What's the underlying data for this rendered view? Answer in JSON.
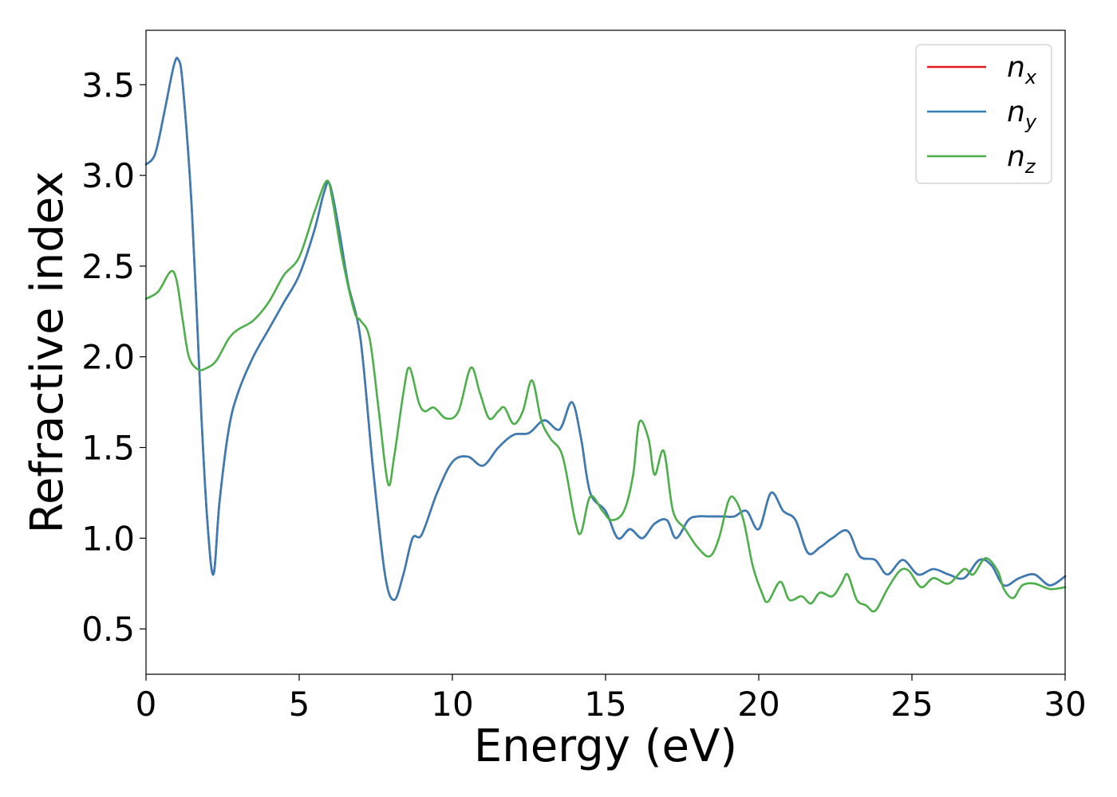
{
  "chart_data": {
    "type": "line",
    "title": "",
    "xlabel": "Energy (eV)",
    "ylabel": "Refractive index",
    "xlim": [
      0,
      30
    ],
    "ylim": [
      0.25,
      3.8
    ],
    "xticks": [
      0,
      5,
      10,
      15,
      20,
      25,
      30
    ],
    "yticks": [
      0.5,
      1.0,
      1.5,
      2.0,
      2.5,
      3.0,
      3.5
    ],
    "xtick_labels": [
      "0",
      "5",
      "10",
      "15",
      "20",
      "25",
      "30"
    ],
    "ytick_labels": [
      "0.5",
      "1.0",
      "1.5",
      "2.0",
      "2.5",
      "3.0",
      "3.5"
    ],
    "grid": false,
    "legend_position": "top-right",
    "series": [
      {
        "name": "n",
        "subscript": "x",
        "color": "#e41a1c",
        "x": [
          0,
          0.3,
          0.6,
          0.9,
          1.05,
          1.2,
          1.5,
          1.8,
          2.0,
          2.2,
          2.4,
          2.7,
          3.0,
          3.5,
          4.0,
          4.5,
          5.0,
          5.5,
          5.8,
          6.0,
          6.3,
          6.6,
          7.0,
          7.4,
          7.8,
          8.1,
          8.4,
          8.7,
          9.0,
          9.5,
          10.0,
          10.5,
          11.0,
          11.5,
          12.0,
          12.5,
          13.0,
          13.5,
          13.9,
          14.2,
          14.5,
          15.0,
          15.4,
          15.8,
          16.2,
          16.6,
          17.0,
          17.3,
          17.7,
          18.0,
          18.4,
          18.8,
          19.2,
          19.6,
          20.0,
          20.4,
          20.8,
          21.2,
          21.6,
          22.0,
          22.4,
          22.9,
          23.3,
          23.8,
          24.2,
          24.7,
          25.2,
          25.7,
          26.2,
          26.7,
          27.2,
          27.6,
          28.0,
          28.5,
          29.0,
          29.5,
          30.0
        ],
        "values": [
          3.06,
          3.12,
          3.35,
          3.6,
          3.64,
          3.5,
          2.8,
          1.7,
          1.1,
          0.8,
          1.2,
          1.6,
          1.8,
          2.0,
          2.15,
          2.3,
          2.45,
          2.7,
          2.9,
          2.95,
          2.7,
          2.4,
          2.1,
          1.4,
          0.8,
          0.66,
          0.8,
          1.0,
          1.02,
          1.25,
          1.42,
          1.45,
          1.4,
          1.5,
          1.57,
          1.58,
          1.65,
          1.6,
          1.75,
          1.55,
          1.25,
          1.15,
          1.0,
          1.05,
          1.0,
          1.08,
          1.1,
          1.0,
          1.1,
          1.12,
          1.12,
          1.12,
          1.12,
          1.15,
          1.05,
          1.25,
          1.15,
          1.1,
          0.92,
          0.95,
          1.0,
          1.04,
          0.9,
          0.88,
          0.8,
          0.88,
          0.8,
          0.83,
          0.8,
          0.78,
          0.88,
          0.85,
          0.74,
          0.78,
          0.8,
          0.74,
          0.79
        ]
      },
      {
        "name": "n",
        "subscript": "y",
        "color": "#377eb8",
        "x": [
          0,
          0.3,
          0.6,
          0.9,
          1.05,
          1.2,
          1.5,
          1.8,
          2.0,
          2.2,
          2.4,
          2.7,
          3.0,
          3.5,
          4.0,
          4.5,
          5.0,
          5.5,
          5.8,
          6.0,
          6.3,
          6.6,
          7.0,
          7.4,
          7.8,
          8.1,
          8.4,
          8.7,
          9.0,
          9.5,
          10.0,
          10.5,
          11.0,
          11.5,
          12.0,
          12.5,
          13.0,
          13.5,
          13.9,
          14.2,
          14.5,
          15.0,
          15.4,
          15.8,
          16.2,
          16.6,
          17.0,
          17.3,
          17.7,
          18.0,
          18.4,
          18.8,
          19.2,
          19.6,
          20.0,
          20.4,
          20.8,
          21.2,
          21.6,
          22.0,
          22.4,
          22.9,
          23.3,
          23.8,
          24.2,
          24.7,
          25.2,
          25.7,
          26.2,
          26.7,
          27.2,
          27.6,
          28.0,
          28.5,
          29.0,
          29.5,
          30.0
        ],
        "values": [
          3.06,
          3.12,
          3.35,
          3.6,
          3.64,
          3.5,
          2.8,
          1.7,
          1.1,
          0.8,
          1.2,
          1.6,
          1.8,
          2.0,
          2.15,
          2.3,
          2.45,
          2.7,
          2.9,
          2.95,
          2.7,
          2.4,
          2.1,
          1.4,
          0.8,
          0.66,
          0.8,
          1.0,
          1.02,
          1.25,
          1.42,
          1.45,
          1.4,
          1.5,
          1.57,
          1.58,
          1.65,
          1.6,
          1.75,
          1.55,
          1.25,
          1.15,
          1.0,
          1.05,
          1.0,
          1.08,
          1.1,
          1.0,
          1.1,
          1.12,
          1.12,
          1.12,
          1.12,
          1.15,
          1.05,
          1.25,
          1.15,
          1.1,
          0.92,
          0.95,
          1.0,
          1.04,
          0.9,
          0.88,
          0.8,
          0.88,
          0.8,
          0.83,
          0.8,
          0.78,
          0.88,
          0.85,
          0.74,
          0.78,
          0.8,
          0.74,
          0.79
        ]
      },
      {
        "name": "n",
        "subscript": "z",
        "color": "#4daf4a",
        "x": [
          0,
          0.4,
          0.8,
          1.0,
          1.2,
          1.4,
          1.7,
          2.0,
          2.3,
          2.7,
          3.0,
          3.5,
          4.0,
          4.5,
          5.0,
          5.5,
          5.9,
          6.1,
          6.4,
          6.8,
          7.0,
          7.3,
          7.6,
          7.9,
          8.1,
          8.4,
          8.6,
          8.9,
          9.1,
          9.4,
          9.8,
          10.2,
          10.6,
          10.9,
          11.2,
          11.5,
          11.7,
          12.0,
          12.3,
          12.6,
          12.9,
          13.2,
          13.6,
          14.0,
          14.2,
          14.5,
          14.9,
          15.2,
          15.6,
          15.9,
          16.1,
          16.4,
          16.6,
          16.9,
          17.2,
          17.6,
          18.0,
          18.4,
          18.7,
          19.0,
          19.2,
          19.5,
          19.8,
          20.1,
          20.3,
          20.7,
          21.0,
          21.4,
          21.7,
          22.0,
          22.4,
          22.7,
          22.9,
          23.2,
          23.5,
          23.8,
          24.2,
          24.6,
          24.9,
          25.3,
          25.7,
          26.2,
          26.7,
          27.0,
          27.4,
          27.8,
          28.0,
          28.3,
          28.6,
          29.0,
          29.5,
          30.0
        ],
        "values": [
          2.32,
          2.36,
          2.47,
          2.42,
          2.2,
          2.0,
          1.93,
          1.94,
          1.98,
          2.1,
          2.15,
          2.2,
          2.3,
          2.45,
          2.55,
          2.8,
          2.97,
          2.85,
          2.55,
          2.25,
          2.2,
          2.1,
          1.7,
          1.3,
          1.45,
          1.8,
          1.94,
          1.75,
          1.7,
          1.72,
          1.66,
          1.7,
          1.94,
          1.8,
          1.66,
          1.7,
          1.72,
          1.63,
          1.7,
          1.87,
          1.65,
          1.55,
          1.45,
          1.1,
          1.03,
          1.23,
          1.15,
          1.1,
          1.15,
          1.35,
          1.64,
          1.55,
          1.35,
          1.48,
          1.15,
          1.05,
          0.95,
          0.9,
          1.0,
          1.2,
          1.22,
          1.1,
          0.85,
          0.7,
          0.65,
          0.76,
          0.66,
          0.68,
          0.64,
          0.7,
          0.68,
          0.75,
          0.8,
          0.66,
          0.63,
          0.6,
          0.72,
          0.82,
          0.82,
          0.73,
          0.78,
          0.75,
          0.83,
          0.8,
          0.89,
          0.82,
          0.72,
          0.67,
          0.74,
          0.75,
          0.72,
          0.73
        ]
      }
    ]
  }
}
